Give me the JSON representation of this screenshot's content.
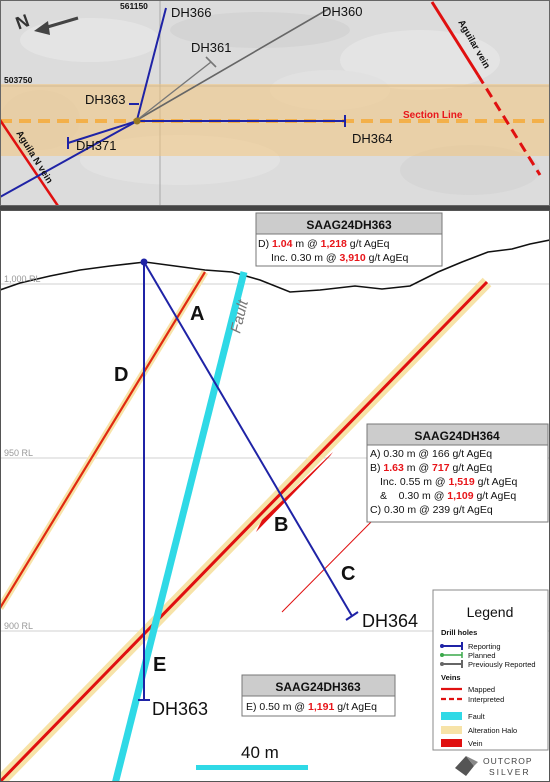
{
  "plan_map": {
    "north_label": "N",
    "easting": "561150",
    "northing": "503750",
    "holes": [
      "DH366",
      "DH360",
      "DH361",
      "DH363",
      "DH364",
      "DH371"
    ],
    "section_line_label": "Section Line",
    "vein_labels": [
      "Aguilar vein",
      "Aguila N vein"
    ]
  },
  "section": {
    "rl_labels": [
      "1,000 RL",
      "950 RL",
      "900 RL"
    ],
    "intercept_letters": [
      "A",
      "B",
      "C",
      "D",
      "E"
    ],
    "fault_label": "Fault",
    "hole_labels": [
      "DH364",
      "DH363"
    ],
    "scale_label": "40 m"
  },
  "boxes": {
    "top": {
      "title": "SAAG24DH363",
      "l1": {
        "p1": "D) ",
        "len": "1.04",
        "p2": " m @ ",
        "grade": "1,218",
        "p3": " g/t AgEq"
      },
      "l2": {
        "p1": "Inc. 0.30 m @ ",
        "grade": "3,910",
        "p2": " g/t AgEq"
      }
    },
    "right": {
      "title": "SAAG24DH364",
      "a": "A) 0.30 m @ 166 g/t AgEq",
      "b": {
        "p1": "B) ",
        "len": "1.63",
        "p2": " m @ ",
        "grade": "717",
        "p3": " g/t AgEq"
      },
      "inc": {
        "p1": "Inc. 0.55 m @ ",
        "grade": "1,519",
        "p2": " g/t AgEq"
      },
      "and": {
        "p1": "&    0.30 m @ ",
        "grade": "1,109",
        "p2": " g/t AgEq"
      },
      "c": "C) 0.30 m @ 239 g/t AgEq"
    },
    "bottom": {
      "title": "SAAG24DH363",
      "l1": {
        "p1": "E) 0.50 m @ ",
        "grade": "1,191",
        "p2": " g/t AgEq"
      }
    }
  },
  "legend": {
    "title": "Legend",
    "drill_heading": "Drill holes",
    "reporting": "Reporting",
    "planned": "Planned",
    "previous": "Previously Reported",
    "veins_heading": "Veins",
    "mapped": "Mapped",
    "interpreted": "Interpreted",
    "fault": "Fault",
    "halo": "Alteration Halo",
    "vein": "Vein"
  },
  "logo": {
    "line1": "OUTCROP",
    "line2": "SILVER"
  },
  "colors": {
    "highlight": "#e8151a",
    "reporting": "#1f23a6",
    "fault": "#2fd9e6",
    "halo": "#f7e3a8",
    "vein": "#e01010",
    "section_line": "#f3b04a"
  }
}
